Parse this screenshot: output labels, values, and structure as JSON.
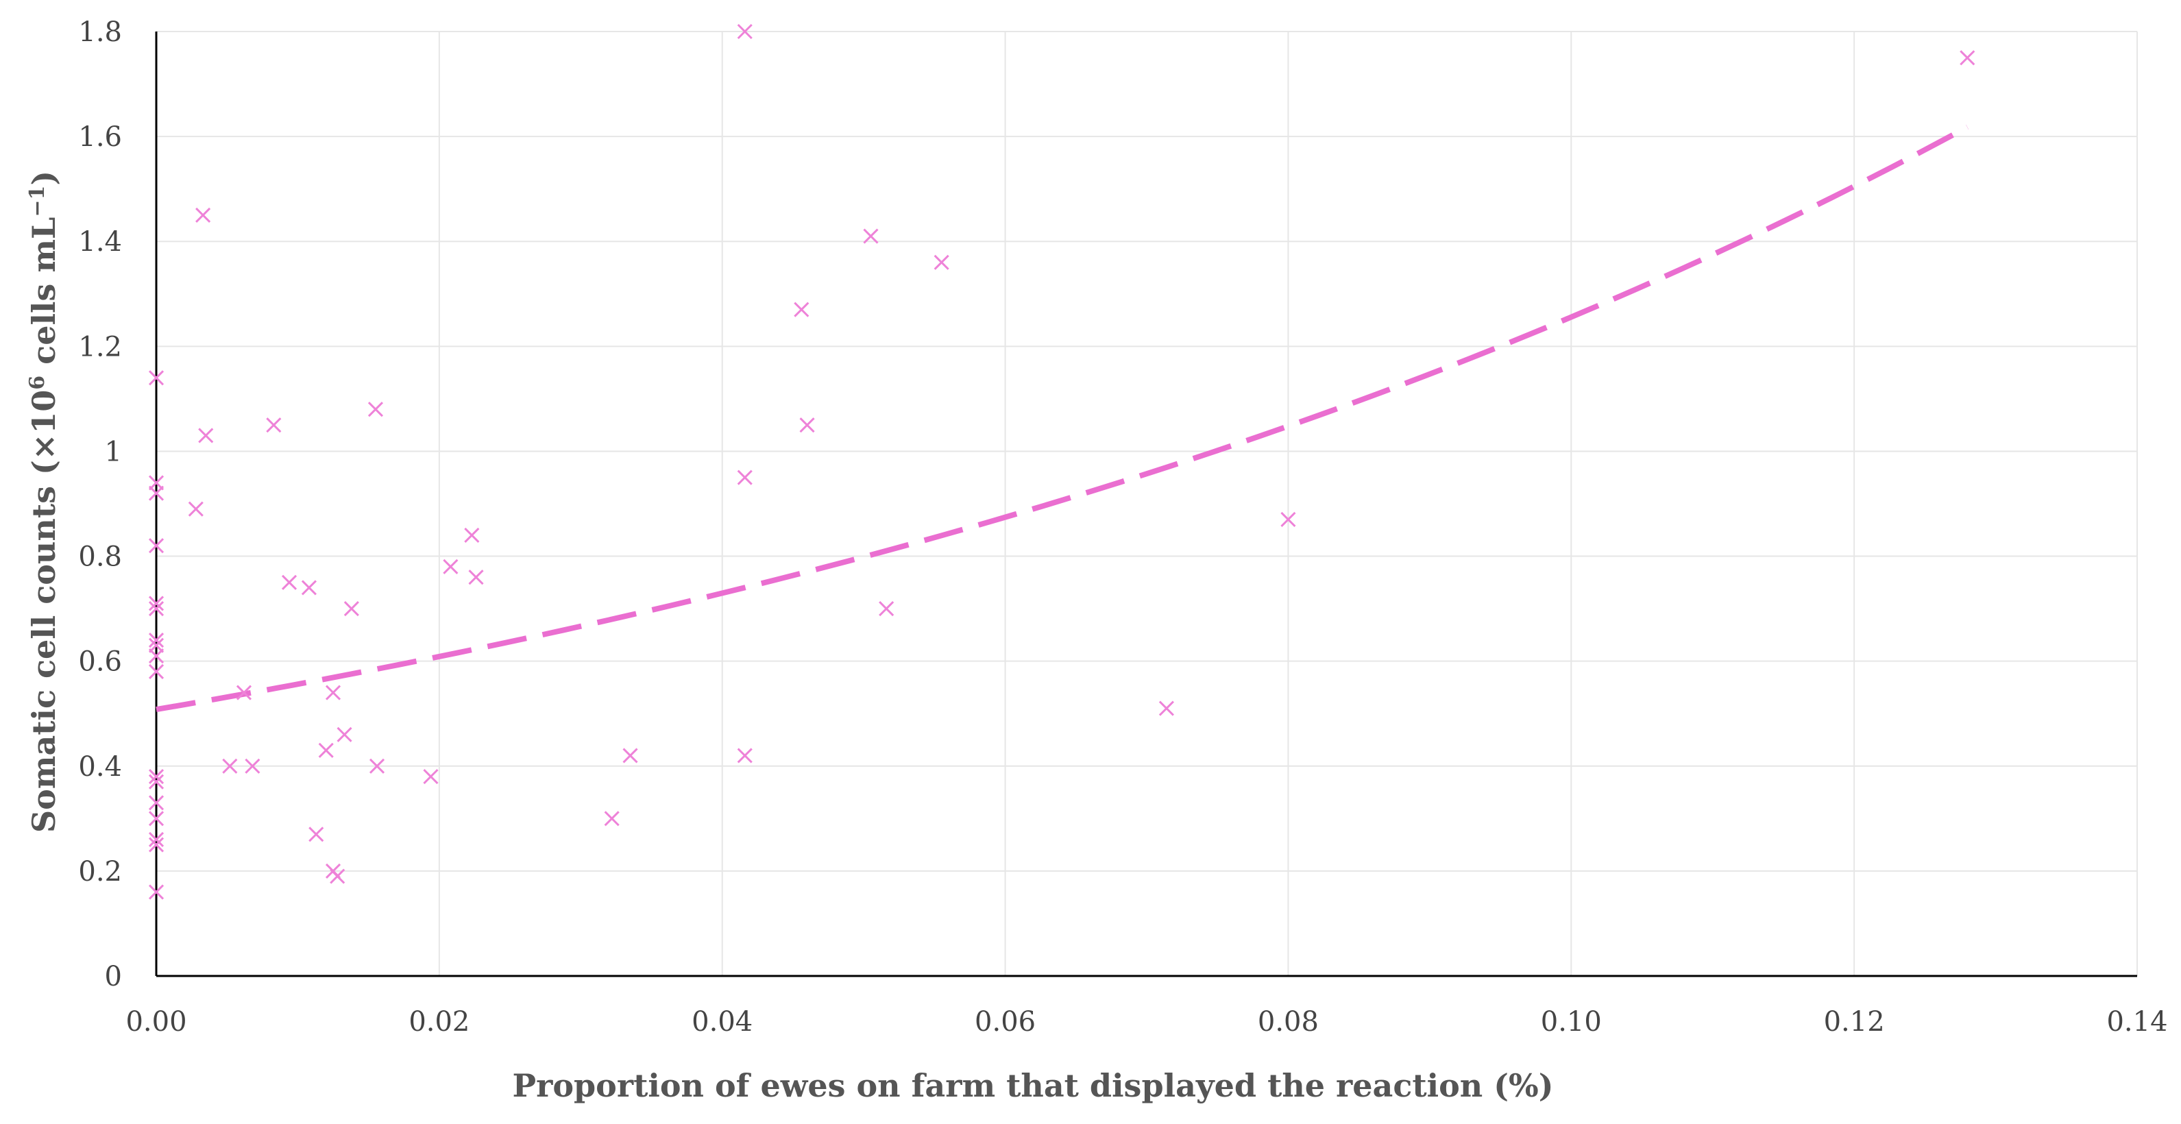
{
  "chart_data": {
    "type": "scatter",
    "title": "",
    "xlabel": "Proportion of ewes on farm that displayed the reaction (%)",
    "ylabel_parts": [
      "Somatic cell counts (×10",
      "6",
      " cells mL",
      "−1",
      ")"
    ],
    "xlim": [
      0,
      0.14
    ],
    "ylim": [
      0,
      1.8
    ],
    "x_ticks": [
      0,
      0.02,
      0.04,
      0.06,
      0.08,
      0.1,
      0.12,
      0.14
    ],
    "x_tick_labels": [
      "0.00",
      "0.02",
      "0.04",
      "0.06",
      "0.08",
      "0.10",
      "0.12",
      "0.14"
    ],
    "y_ticks": [
      0,
      0.2,
      0.4,
      0.6,
      0.8,
      1.0,
      1.2,
      1.4,
      1.6,
      1.8
    ],
    "y_tick_labels": [
      "0",
      "0.2",
      "0.4",
      "0.6",
      "0.8",
      "1",
      "1.2",
      "1.4",
      "1.6",
      "1.8"
    ],
    "grid": true,
    "legend": "none",
    "marker": "x",
    "color": "#ee82d8",
    "trend_color": "#ea6ed0",
    "points": [
      [
        0,
        1.14
      ],
      [
        0,
        0.94
      ],
      [
        0,
        0.92
      ],
      [
        0,
        0.82
      ],
      [
        0,
        0.71
      ],
      [
        0,
        0.7
      ],
      [
        0,
        0.64
      ],
      [
        0,
        0.63
      ],
      [
        0,
        0.61
      ],
      [
        0,
        0.58
      ],
      [
        0,
        0.38
      ],
      [
        0,
        0.37
      ],
      [
        0,
        0.33
      ],
      [
        0,
        0.3
      ],
      [
        0,
        0.26
      ],
      [
        0,
        0.25
      ],
      [
        0,
        0.16
      ],
      [
        0.0028,
        0.89
      ],
      [
        0.0033,
        1.45
      ],
      [
        0.0035,
        1.03
      ],
      [
        0.0052,
        0.4
      ],
      [
        0.0062,
        0.54
      ],
      [
        0.0068,
        0.4
      ],
      [
        0.0083,
        1.05
      ],
      [
        0.0094,
        0.75
      ],
      [
        0.0108,
        0.74
      ],
      [
        0.0113,
        0.27
      ],
      [
        0.012,
        0.43
      ],
      [
        0.0125,
        0.54
      ],
      [
        0.0125,
        0.2
      ],
      [
        0.0128,
        0.19
      ],
      [
        0.0133,
        0.46
      ],
      [
        0.0138,
        0.7
      ],
      [
        0.0155,
        1.08
      ],
      [
        0.0156,
        0.4
      ],
      [
        0.0194,
        0.38
      ],
      [
        0.0208,
        0.78
      ],
      [
        0.0223,
        0.84
      ],
      [
        0.0226,
        0.76
      ],
      [
        0.0322,
        0.3
      ],
      [
        0.0335,
        0.42
      ],
      [
        0.0416,
        1.8
      ],
      [
        0.0416,
        0.95
      ],
      [
        0.0416,
        0.42
      ],
      [
        0.0456,
        1.27
      ],
      [
        0.046,
        1.05
      ],
      [
        0.0505,
        1.41
      ],
      [
        0.0516,
        0.7
      ],
      [
        0.0555,
        1.36
      ],
      [
        0.0714,
        0.51
      ],
      [
        0.08,
        0.87
      ],
      [
        0.128,
        1.75
      ]
    ],
    "trendline": {
      "type": "exponential",
      "a": 0.508,
      "b": 9.05,
      "x_range": [
        0,
        0.128
      ]
    }
  }
}
